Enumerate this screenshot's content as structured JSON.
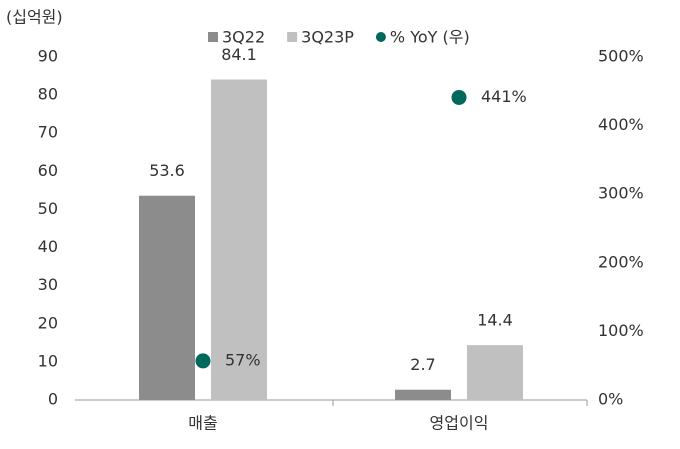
{
  "chart_data": {
    "type": "bar",
    "y_label": "(십억원)",
    "categories": [
      "매출",
      "영업이익"
    ],
    "series": [
      {
        "name": "3Q22",
        "color": "#8c8c8c",
        "values": [
          53.6,
          2.7
        ]
      },
      {
        "name": "3Q23P",
        "color": "#c0c0c0",
        "values": [
          84.1,
          14.4
        ]
      },
      {
        "name": "% YoY (우)",
        "color": "#00695c",
        "type": "scatter",
        "axis": "y2",
        "values": [
          57,
          441
        ],
        "value_labels": [
          "57%",
          "441%"
        ]
      }
    ],
    "ylim": [
      0,
      90
    ],
    "yticks": [
      0,
      10,
      20,
      30,
      40,
      50,
      60,
      70,
      80,
      90
    ],
    "y2lim": [
      0,
      500
    ],
    "y2ticks": [
      {
        "value": 0,
        "label": "0%"
      },
      {
        "value": 100,
        "label": "100%"
      },
      {
        "value": 200,
        "label": "200%"
      },
      {
        "value": 300,
        "label": "300%"
      },
      {
        "value": 400,
        "label": "400%"
      },
      {
        "value": 500,
        "label": "500%"
      }
    ]
  }
}
